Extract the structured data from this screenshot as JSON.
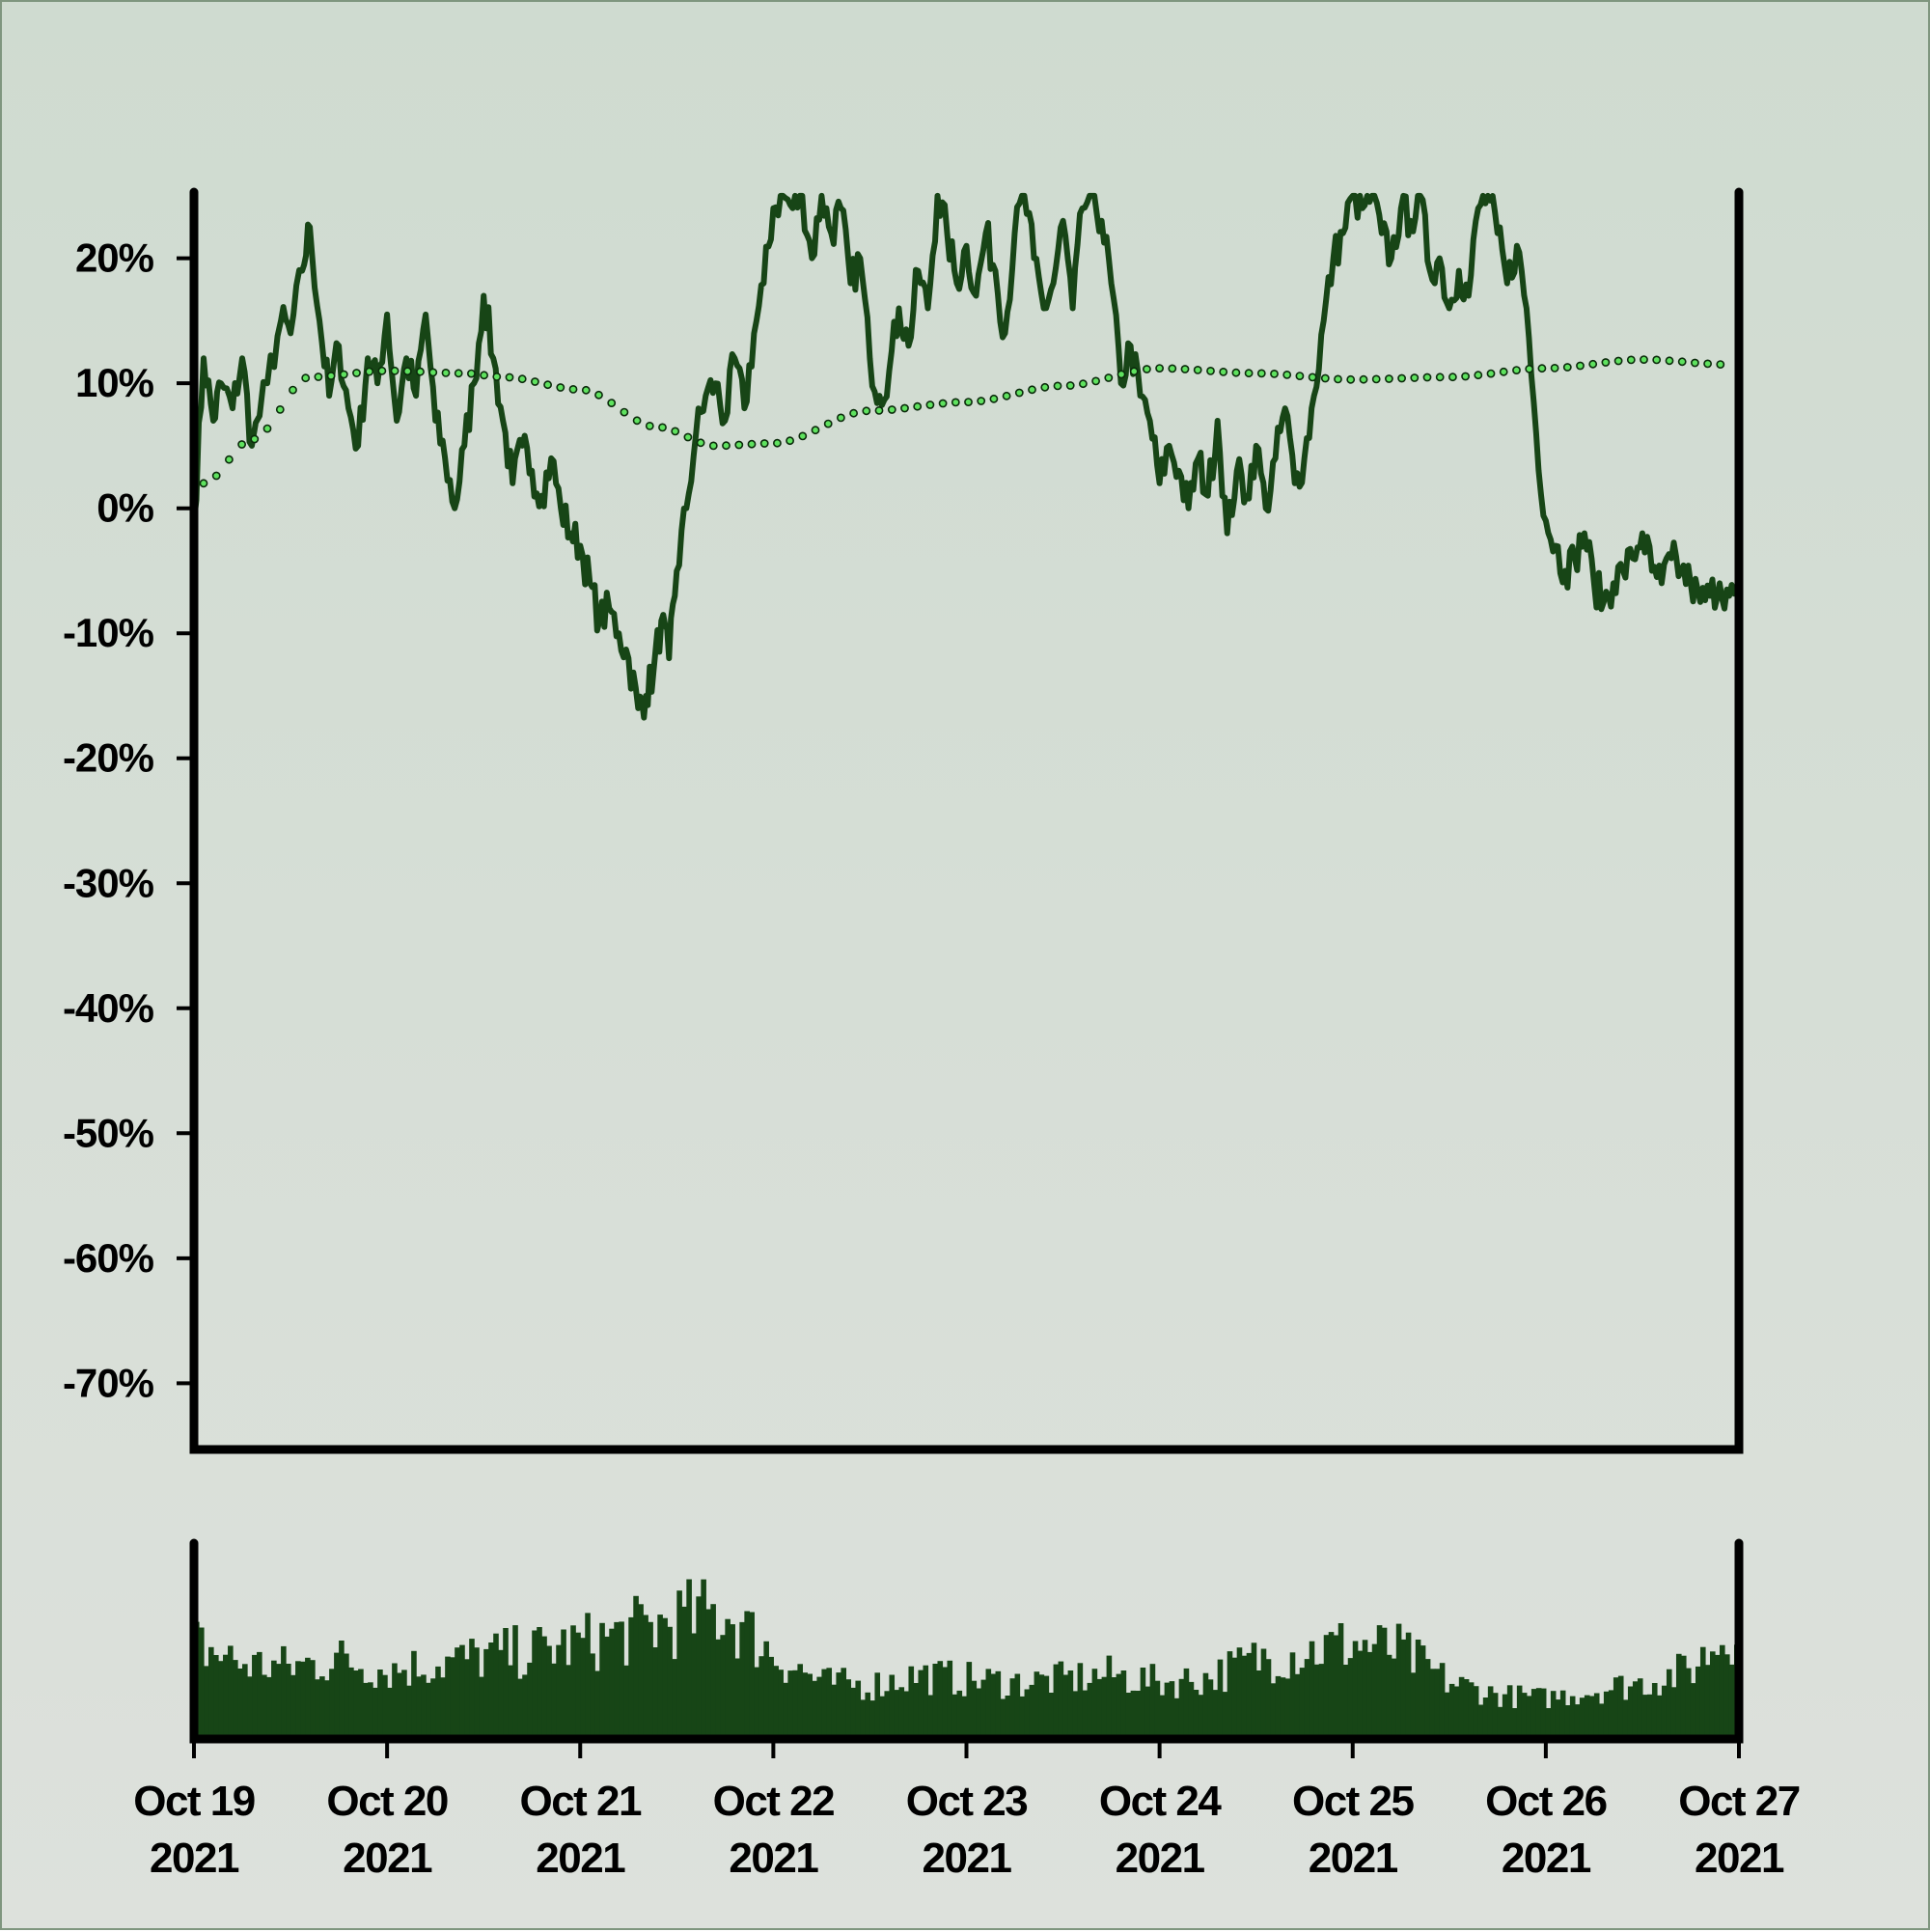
{
  "colors": {
    "price_line": "#174516",
    "moving_average_fill": "#5fe25f",
    "moving_average_stroke": "#0b2a0b",
    "volume_bars": "#174516",
    "axes": "#000000",
    "background_top": "#cfdbd0",
    "background_bottom": "#dde1dc"
  },
  "chart_data": {
    "type": "line",
    "title": "",
    "xlabel": "",
    "ylabel": "",
    "grid": false,
    "legend": "none",
    "x_range": [
      "2021-10-19",
      "2021-10-27"
    ],
    "x_tick_labels": [
      [
        "Oct 19",
        "2021"
      ],
      [
        "Oct 20",
        "2021"
      ],
      [
        "Oct 21",
        "2021"
      ],
      [
        "Oct 22",
        "2021"
      ],
      [
        "Oct 23",
        "2021"
      ],
      [
        "Oct 24",
        "2021"
      ],
      [
        "Oct 25",
        "2021"
      ],
      [
        "Oct 26",
        "2021"
      ],
      [
        "Oct 27",
        "2021"
      ]
    ],
    "y_ticks": [
      20,
      10,
      0,
      -10,
      -20,
      -30,
      -40,
      -50,
      -60,
      -70
    ],
    "y_tick_labels": [
      "20%",
      "10%",
      "0%",
      "-10%",
      "-20%",
      "-30%",
      "-40%",
      "-50%",
      "-60%",
      "-70%"
    ],
    "ylim": [
      -75.3,
      25.3
    ],
    "series": [
      {
        "kind": "price",
        "style": "solid line",
        "x_unit": "days after Oct 19 2021 00:00",
        "x": [
          0,
          0.05,
          0.1,
          0.14,
          0.2,
          0.25,
          0.3,
          0.38,
          0.45,
          0.5,
          0.56,
          0.6,
          0.65,
          0.7,
          0.75,
          0.8,
          0.85,
          0.9,
          0.95,
          1.0,
          1.05,
          1.1,
          1.15,
          1.2,
          1.25,
          1.3,
          1.35,
          1.4,
          1.45,
          1.5,
          1.55,
          1.6,
          1.65,
          1.7,
          1.75,
          1.8,
          1.85,
          1.9,
          1.95,
          2.0,
          2.05,
          2.1,
          2.15,
          2.2,
          2.25,
          2.3,
          2.34,
          2.38,
          2.42,
          2.46,
          2.5,
          2.55,
          2.6,
          2.65,
          2.7,
          2.75,
          2.8,
          2.85,
          2.9,
          2.95,
          3.0,
          3.05,
          3.1,
          3.15,
          3.2,
          3.25,
          3.3,
          3.35,
          3.4,
          3.45,
          3.5,
          3.55,
          3.6,
          3.65,
          3.7,
          3.75,
          3.8,
          3.85,
          3.9,
          3.95,
          4.0,
          4.05,
          4.1,
          4.15,
          4.2,
          4.25,
          4.3,
          4.35,
          4.4,
          4.45,
          4.5,
          4.55,
          4.6,
          4.65,
          4.7,
          4.75,
          4.8,
          4.85,
          4.9,
          4.95,
          5.0,
          5.05,
          5.1,
          5.15,
          5.2,
          5.25,
          5.3,
          5.35,
          5.4,
          5.45,
          5.5,
          5.55,
          5.6,
          5.65,
          5.7,
          5.75,
          5.8,
          5.85,
          5.9,
          5.95,
          6.0,
          6.05,
          6.1,
          6.15,
          6.2,
          6.25,
          6.3,
          6.35,
          6.4,
          6.45,
          6.5,
          6.55,
          6.6,
          6.65,
          6.7,
          6.75,
          6.8,
          6.85,
          6.9,
          6.95,
          7.0,
          7.05,
          7.1,
          7.15,
          7.2,
          7.25,
          7.3,
          7.35,
          7.4,
          7.45,
          7.5,
          7.55,
          7.6,
          7.65,
          7.7,
          7.75,
          7.8,
          7.85,
          7.9,
          7.95,
          8.0
        ],
        "values": [
          -1,
          12,
          7,
          10,
          8,
          12,
          5,
          10,
          15,
          14,
          19,
          22.5,
          15,
          9,
          13,
          8,
          5,
          12,
          10,
          15.5,
          7,
          12,
          9,
          15.5,
          7,
          4,
          0,
          5,
          10,
          17,
          12,
          7,
          2,
          5,
          3,
          1,
          4,
          0,
          -2,
          -3,
          -6,
          -9,
          -8,
          -10,
          -12,
          -16,
          -15,
          -13,
          -9,
          -12,
          -5,
          0,
          6,
          9,
          10,
          7,
          12,
          8,
          14,
          18,
          24,
          25,
          24,
          25,
          20,
          25,
          22,
          24,
          18,
          20,
          12,
          9,
          11,
          16,
          13,
          19,
          16,
          25,
          22,
          18,
          21,
          17,
          22,
          19,
          14,
          22,
          25,
          20,
          16,
          18,
          23,
          16,
          24,
          25,
          23,
          18,
          10,
          13,
          9,
          7,
          2,
          5,
          3,
          0,
          4,
          1,
          7,
          -2,
          3,
          1,
          5,
          0,
          4,
          8,
          2,
          4,
          9,
          15,
          20,
          22,
          25,
          24,
          25,
          22,
          20,
          24,
          23,
          25,
          19,
          20,
          16,
          19,
          17,
          24,
          25,
          22,
          18,
          21,
          16,
          6,
          -1,
          -3,
          -5,
          -4,
          -2,
          -6,
          -7.5,
          -6,
          -5,
          -4,
          -2,
          -5,
          -6,
          -4,
          -5,
          -6,
          -7.5,
          -7,
          -6,
          -7,
          -7.5
        ]
      },
      {
        "kind": "moving_average",
        "style": "dotted line with circle markers",
        "x_unit": "days after Oct 19 2021 00:00",
        "x": [
          0.05,
          0.3,
          0.6,
          1.0,
          1.4,
          1.6,
          2.0,
          2.4,
          2.7,
          3.0,
          3.5,
          4.0,
          4.5,
          5.0,
          5.5,
          6.0,
          6.5,
          7.0,
          7.5,
          7.95
        ],
        "values": [
          2,
          5.5,
          10.5,
          11,
          10.8,
          10.5,
          9.5,
          6.5,
          5,
          5.2,
          7.8,
          8.5,
          9.8,
          11.2,
          10.8,
          10.3,
          10.5,
          11.2,
          11.9,
          11.5
        ]
      }
    ],
    "volume": {
      "kind": "bar",
      "unlabeled_axis": true,
      "x_unit": "days after Oct 19 2021 00:00",
      "x": [
        0,
        0.25,
        0.5,
        0.75,
        1.0,
        1.25,
        1.5,
        1.75,
        2.0,
        2.25,
        2.5,
        2.75,
        3.0,
        3.25,
        3.5,
        3.75,
        4.0,
        4.25,
        4.5,
        4.75,
        5.0,
        5.25,
        5.5,
        5.75,
        6.0,
        6.25,
        6.5,
        6.75,
        7.0,
        7.25,
        7.5,
        7.75,
        8.0
      ],
      "relative_values": [
        0.55,
        0.42,
        0.4,
        0.45,
        0.38,
        0.42,
        0.47,
        0.5,
        0.55,
        0.62,
        0.7,
        0.75,
        0.48,
        0.3,
        0.28,
        0.35,
        0.32,
        0.3,
        0.32,
        0.35,
        0.3,
        0.33,
        0.45,
        0.5,
        0.55,
        0.5,
        0.3,
        0.22,
        0.2,
        0.25,
        0.3,
        0.38,
        0.7
      ]
    }
  }
}
